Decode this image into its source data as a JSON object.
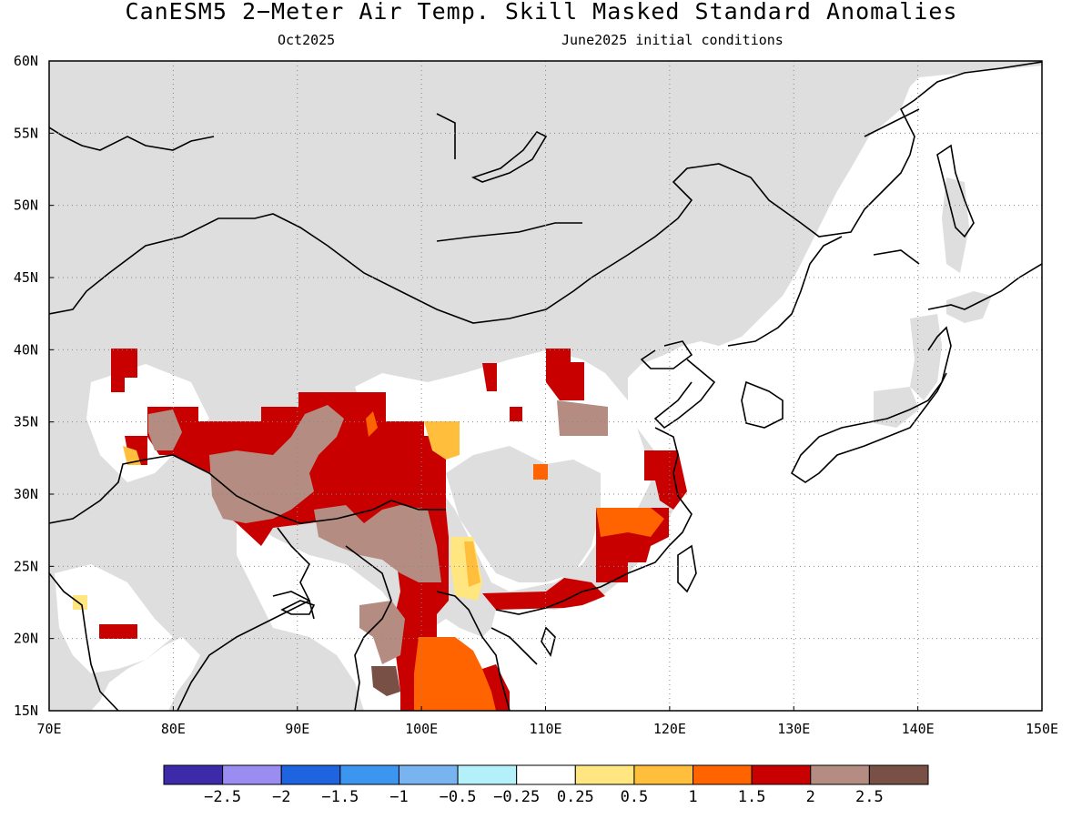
{
  "title": "CanESM5 2−Meter Air Temp. Skill Masked Standard Anomalies",
  "subtitle_left": "Oct2025",
  "subtitle_right": "June2025 initial conditions",
  "lon_labels": [
    "70E",
    "80E",
    "90E",
    "100E",
    "110E",
    "120E",
    "130E",
    "140E",
    "150E"
  ],
  "lat_labels": [
    "60N",
    "55N",
    "50N",
    "45N",
    "40N",
    "35N",
    "30N",
    "25N",
    "20N",
    "15N"
  ],
  "colorbar": {
    "colors": [
      "#3d2aa8",
      "#9a8cf0",
      "#1e64e0",
      "#3c96f0",
      "#78b4f0",
      "#b4f0fa",
      "#ffffff",
      "#ffe680",
      "#ffbe3c",
      "#ff6400",
      "#c80000",
      "#b48c82",
      "#785046"
    ],
    "labels": [
      "−2.5",
      "−2",
      "−1.5",
      "−1",
      "−0.5",
      "−0.25",
      "0.25",
      "0.5",
      "1",
      "1.5",
      "2",
      "2.5"
    ]
  },
  "colors": {
    "land_masked": "#dedede",
    "ocean": "#ffffff",
    "coast": "#000000"
  }
}
